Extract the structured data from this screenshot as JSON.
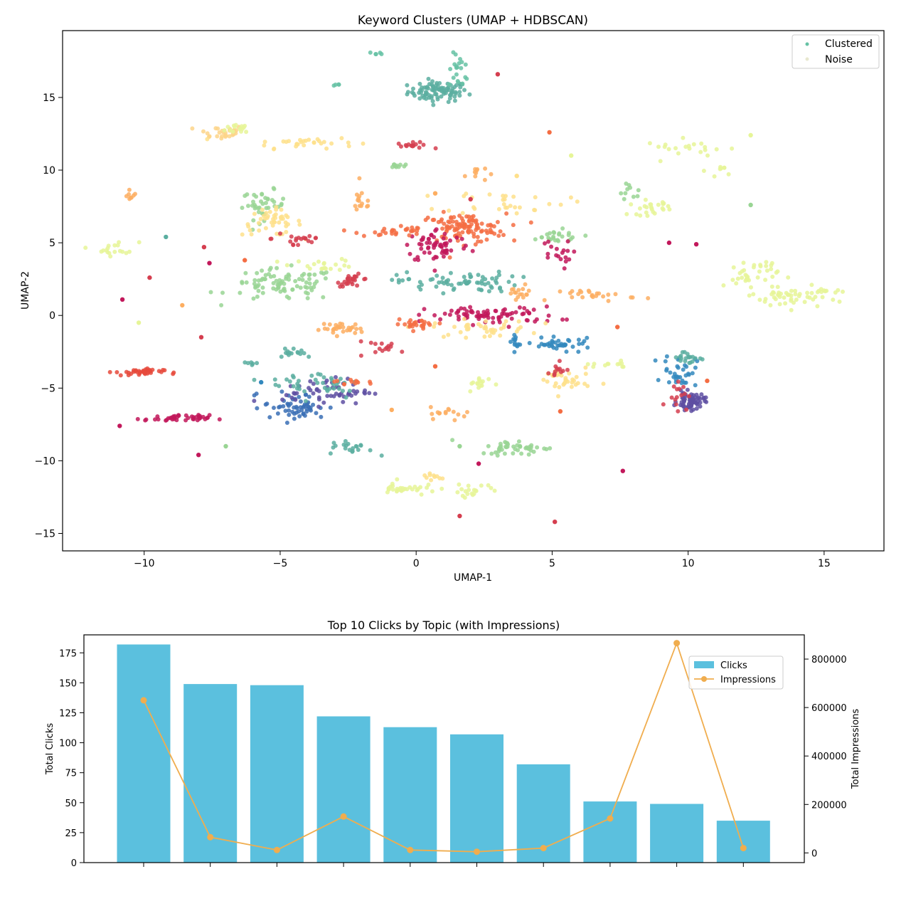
{
  "chart_data": [
    {
      "type": "scatter",
      "title": "Keyword Clusters (UMAP + HDBSCAN)",
      "xlabel": "UMAP-1",
      "ylabel": "UMAP-2",
      "xlim": [
        -13,
        17.2
      ],
      "ylim": [
        -16.2,
        19.6
      ],
      "xticks": [
        -10,
        -5,
        0,
        5,
        10,
        15
      ],
      "yticks": [
        -15,
        -10,
        -5,
        0,
        5,
        10,
        15
      ],
      "xtick_labels": [
        "−10",
        "−5",
        "0",
        "5",
        "10",
        "15"
      ],
      "ytick_labels": [
        "−15",
        "−10",
        "−5",
        "0",
        "5",
        "10",
        "15"
      ],
      "legend": {
        "placement": "top-right",
        "entries": [
          {
            "label": "Clustered",
            "color": "#66c2a5"
          },
          {
            "label": "Noise",
            "color": "#e8e8d0"
          }
        ]
      },
      "clusters": [
        {
          "cx": 0.8,
          "cy": 15.4,
          "sx": 0.55,
          "sy": 0.35,
          "n": 90,
          "color": "#5aaea0"
        },
        {
          "cx": 1.6,
          "cy": 16.8,
          "sx": 0.2,
          "sy": 0.6,
          "n": 20,
          "color": "#66c2a5"
        },
        {
          "cx": -1.5,
          "cy": 18.0,
          "sx": 0.12,
          "sy": 0.08,
          "n": 5,
          "color": "#66c2a5"
        },
        {
          "cx": -2.9,
          "cy": 15.9,
          "sx": 0.08,
          "sy": 0.06,
          "n": 4,
          "color": "#66c2a5"
        },
        {
          "cx": -7.2,
          "cy": 12.6,
          "sx": 0.45,
          "sy": 0.25,
          "n": 30,
          "color": "#fdd58a"
        },
        {
          "cx": -6.4,
          "cy": 12.9,
          "sx": 0.3,
          "sy": 0.2,
          "n": 15,
          "color": "#e6f598"
        },
        {
          "cx": -4.2,
          "cy": 11.9,
          "sx": 1.0,
          "sy": 0.2,
          "n": 30,
          "color": "#fee08b"
        },
        {
          "cx": -0.1,
          "cy": 11.7,
          "sx": 0.3,
          "sy": 0.1,
          "n": 15,
          "color": "#d53e4f"
        },
        {
          "cx": -0.8,
          "cy": 10.3,
          "sx": 0.2,
          "sy": 0.1,
          "n": 10,
          "color": "#99d594"
        },
        {
          "cx": 2.2,
          "cy": 9.8,
          "sx": 0.2,
          "sy": 0.3,
          "n": 10,
          "color": "#fdae61"
        },
        {
          "cx": -11.0,
          "cy": 4.6,
          "sx": 0.4,
          "sy": 0.25,
          "n": 18,
          "color": "#e6f598"
        },
        {
          "cx": -10.5,
          "cy": 8.3,
          "sx": 0.1,
          "sy": 0.2,
          "n": 8,
          "color": "#fdae61"
        },
        {
          "cx": -5.6,
          "cy": 7.6,
          "sx": 0.4,
          "sy": 0.5,
          "n": 40,
          "color": "#99d594"
        },
        {
          "cx": -5.3,
          "cy": 6.4,
          "sx": 0.55,
          "sy": 0.45,
          "n": 45,
          "color": "#fee08b"
        },
        {
          "cx": -4.3,
          "cy": 5.3,
          "sx": 0.5,
          "sy": 0.4,
          "n": 20,
          "color": "#d53e4f"
        },
        {
          "cx": -2.0,
          "cy": 7.8,
          "sx": 0.2,
          "sy": 0.5,
          "n": 15,
          "color": "#fdae61"
        },
        {
          "cx": -4.9,
          "cy": 2.1,
          "sx": 1.0,
          "sy": 0.55,
          "n": 90,
          "color": "#99d594"
        },
        {
          "cx": -3.4,
          "cy": 3.5,
          "sx": 0.6,
          "sy": 0.2,
          "n": 20,
          "color": "#e6f598"
        },
        {
          "cx": -2.3,
          "cy": 2.4,
          "sx": 0.3,
          "sy": 0.2,
          "n": 25,
          "color": "#d53e4f"
        },
        {
          "cx": 1.7,
          "cy": 6.0,
          "sx": 0.8,
          "sy": 0.5,
          "n": 110,
          "color": "#f46d43"
        },
        {
          "cx": 0.8,
          "cy": 4.8,
          "sx": 0.6,
          "sy": 0.6,
          "n": 60,
          "color": "#c2185b"
        },
        {
          "cx": -0.9,
          "cy": 5.8,
          "sx": 0.6,
          "sy": 0.2,
          "n": 25,
          "color": "#f46d43"
        },
        {
          "cx": 3.3,
          "cy": 7.8,
          "sx": 1.1,
          "sy": 0.4,
          "n": 30,
          "color": "#fee08b"
        },
        {
          "cx": 5.0,
          "cy": 5.4,
          "sx": 0.6,
          "sy": 0.25,
          "n": 25,
          "color": "#99d594"
        },
        {
          "cx": 5.1,
          "cy": 4.2,
          "sx": 0.3,
          "sy": 0.5,
          "n": 18,
          "color": "#c2185b"
        },
        {
          "cx": 1.5,
          "cy": 2.3,
          "sx": 1.1,
          "sy": 0.35,
          "n": 70,
          "color": "#5aaea0"
        },
        {
          "cx": 3.8,
          "cy": 1.5,
          "sx": 0.25,
          "sy": 0.3,
          "n": 15,
          "color": "#fdae61"
        },
        {
          "cx": 2.8,
          "cy": 0.0,
          "sx": 1.2,
          "sy": 0.3,
          "n": 80,
          "color": "#c2185b"
        },
        {
          "cx": 2.4,
          "cy": -0.9,
          "sx": 0.9,
          "sy": 0.3,
          "n": 40,
          "color": "#fee08b"
        },
        {
          "cx": 3.6,
          "cy": -1.8,
          "sx": 0.1,
          "sy": 0.3,
          "n": 10,
          "color": "#3288bd"
        },
        {
          "cx": 0.1,
          "cy": -0.6,
          "sx": 0.45,
          "sy": 0.15,
          "n": 25,
          "color": "#f46d43"
        },
        {
          "cx": -2.7,
          "cy": -0.9,
          "sx": 0.4,
          "sy": 0.2,
          "n": 30,
          "color": "#fdae61"
        },
        {
          "cx": -1.2,
          "cy": -2.2,
          "sx": 0.6,
          "sy": 0.2,
          "n": 15,
          "color": "#d53e4f"
        },
        {
          "cx": 6.7,
          "cy": 1.4,
          "sx": 0.7,
          "sy": 0.2,
          "n": 25,
          "color": "#fdae61"
        },
        {
          "cx": 8.6,
          "cy": 7.4,
          "sx": 0.4,
          "sy": 0.25,
          "n": 25,
          "color": "#e6f598"
        },
        {
          "cx": 7.9,
          "cy": 8.5,
          "sx": 0.3,
          "sy": 0.3,
          "n": 10,
          "color": "#99d594"
        },
        {
          "cx": 10.0,
          "cy": 11.5,
          "sx": 0.8,
          "sy": 0.3,
          "n": 20,
          "color": "#e6f598"
        },
        {
          "cx": 11.3,
          "cy": 10.0,
          "sx": 0.3,
          "sy": 0.2,
          "n": 8,
          "color": "#e6f598"
        },
        {
          "cx": 12.3,
          "cy": 2.8,
          "sx": 0.5,
          "sy": 0.6,
          "n": 40,
          "color": "#e6f598"
        },
        {
          "cx": 13.8,
          "cy": 1.2,
          "sx": 0.65,
          "sy": 0.35,
          "n": 45,
          "color": "#e6f598"
        },
        {
          "cx": 15.1,
          "cy": 1.7,
          "sx": 0.35,
          "sy": 0.1,
          "n": 10,
          "color": "#e6f598"
        },
        {
          "cx": 5.3,
          "cy": -2.0,
          "sx": 0.6,
          "sy": 0.2,
          "n": 40,
          "color": "#3288bd"
        },
        {
          "cx": 7.1,
          "cy": -3.4,
          "sx": 0.5,
          "sy": 0.1,
          "n": 12,
          "color": "#e6f598"
        },
        {
          "cx": 5.4,
          "cy": -4.5,
          "sx": 0.5,
          "sy": 0.5,
          "n": 35,
          "color": "#fee08b"
        },
        {
          "cx": 5.2,
          "cy": -3.9,
          "sx": 0.25,
          "sy": 0.3,
          "n": 12,
          "color": "#d53e4f"
        },
        {
          "cx": 10.1,
          "cy": -5.9,
          "sx": 0.25,
          "sy": 0.3,
          "n": 70,
          "color": "#5e4fa2"
        },
        {
          "cx": 9.7,
          "cy": -3.8,
          "sx": 0.3,
          "sy": 0.55,
          "n": 35,
          "color": "#3288bd"
        },
        {
          "cx": 10.0,
          "cy": -2.9,
          "sx": 0.35,
          "sy": 0.25,
          "n": 20,
          "color": "#5aaea0"
        },
        {
          "cx": 9.6,
          "cy": -5.2,
          "sx": 0.2,
          "sy": 0.6,
          "n": 15,
          "color": "#d53e4f"
        },
        {
          "cx": -10.2,
          "cy": -3.9,
          "sx": 0.45,
          "sy": 0.12,
          "n": 40,
          "color": "#e64a3c"
        },
        {
          "cx": -8.8,
          "cy": -7.1,
          "sx": 0.6,
          "sy": 0.12,
          "n": 40,
          "color": "#c2185b"
        },
        {
          "cx": -4.4,
          "cy": -6.3,
          "sx": 0.6,
          "sy": 0.5,
          "n": 60,
          "color": "#3a6fb5"
        },
        {
          "cx": -3.3,
          "cy": -5.2,
          "sx": 0.8,
          "sy": 0.45,
          "n": 55,
          "color": "#5e4fa2"
        },
        {
          "cx": -3.6,
          "cy": -4.7,
          "sx": 0.9,
          "sy": 0.5,
          "n": 40,
          "color": "#5aaea0"
        },
        {
          "cx": -4.5,
          "cy": -2.5,
          "sx": 0.4,
          "sy": 0.2,
          "n": 15,
          "color": "#5aaea0"
        },
        {
          "cx": -6.2,
          "cy": -3.3,
          "sx": 0.2,
          "sy": 0.1,
          "n": 6,
          "color": "#5aaea0"
        },
        {
          "cx": -2.2,
          "cy": -4.6,
          "sx": 0.4,
          "sy": 0.1,
          "n": 12,
          "color": "#f46d43"
        },
        {
          "cx": 1.3,
          "cy": -6.7,
          "sx": 0.4,
          "sy": 0.2,
          "n": 15,
          "color": "#fdae61"
        },
        {
          "cx": 2.4,
          "cy": -4.7,
          "sx": 0.25,
          "sy": 0.25,
          "n": 15,
          "color": "#e6f598"
        },
        {
          "cx": -2.4,
          "cy": -9.1,
          "sx": 0.4,
          "sy": 0.25,
          "n": 20,
          "color": "#5aaea0"
        },
        {
          "cx": 3.7,
          "cy": -9.1,
          "sx": 0.7,
          "sy": 0.25,
          "n": 45,
          "color": "#99d594"
        },
        {
          "cx": -0.5,
          "cy": -11.9,
          "sx": 0.4,
          "sy": 0.25,
          "n": 30,
          "color": "#e6f598"
        },
        {
          "cx": 2.1,
          "cy": -12.0,
          "sx": 0.5,
          "sy": 0.2,
          "n": 20,
          "color": "#e6f598"
        },
        {
          "cx": 0.5,
          "cy": -11.1,
          "sx": 0.3,
          "sy": 0.15,
          "n": 10,
          "color": "#fee08b"
        }
      ],
      "singles": [
        {
          "x": 3.0,
          "y": 16.6,
          "color": "#d53e4f"
        },
        {
          "x": 4.9,
          "y": 12.6,
          "color": "#f46d43"
        },
        {
          "x": -9.2,
          "y": 5.4,
          "color": "#5aaea0"
        },
        {
          "x": -7.8,
          "y": 4.7,
          "color": "#d53e4f"
        },
        {
          "x": -7.6,
          "y": 3.6,
          "color": "#c2185b"
        },
        {
          "x": -6.3,
          "y": 3.8,
          "color": "#f46d43"
        },
        {
          "x": -9.8,
          "y": 2.6,
          "color": "#d53e4f"
        },
        {
          "x": -10.8,
          "y": 1.1,
          "color": "#c2185b"
        },
        {
          "x": -8.6,
          "y": 0.7,
          "color": "#fdae61"
        },
        {
          "x": -10.2,
          "y": -0.5,
          "color": "#e6f598"
        },
        {
          "x": -7.9,
          "y": -1.5,
          "color": "#d53e4f"
        },
        {
          "x": -10.9,
          "y": -7.6,
          "color": "#c2185b"
        },
        {
          "x": -8.0,
          "y": -9.6,
          "color": "#c2185b"
        },
        {
          "x": -7.0,
          "y": -9.0,
          "color": "#99d594"
        },
        {
          "x": 10.3,
          "y": 4.9,
          "color": "#c2185b"
        },
        {
          "x": 9.3,
          "y": 5.0,
          "color": "#c2185b"
        },
        {
          "x": 12.3,
          "y": 7.6,
          "color": "#99d594"
        },
        {
          "x": 12.3,
          "y": 12.4,
          "color": "#e6f598"
        },
        {
          "x": 7.4,
          "y": -0.8,
          "color": "#f46d43"
        },
        {
          "x": 7.6,
          "y": -10.7,
          "color": "#c2185b"
        },
        {
          "x": 5.1,
          "y": -14.2,
          "color": "#d53e4f"
        },
        {
          "x": 1.6,
          "y": -13.8,
          "color": "#d53e4f"
        },
        {
          "x": 5.3,
          "y": -6.6,
          "color": "#f46d43"
        },
        {
          "x": 10.7,
          "y": -4.5,
          "color": "#f46d43"
        },
        {
          "x": 2.3,
          "y": -10.2,
          "color": "#c2185b"
        },
        {
          "x": 1.6,
          "y": -9.0,
          "color": "#99d594"
        },
        {
          "x": -0.9,
          "y": -6.5,
          "color": "#fdae61"
        },
        {
          "x": 5.7,
          "y": 11.0,
          "color": "#e6f598"
        },
        {
          "x": 3.7,
          "y": 9.6,
          "color": "#fee08b"
        },
        {
          "x": 0.7,
          "y": 8.4,
          "color": "#fdae61"
        },
        {
          "x": -5.7,
          "y": -4.6,
          "color": "#3288bd"
        },
        {
          "x": 0.7,
          "y": -3.5,
          "color": "#f46d43"
        },
        {
          "x": 2.0,
          "y": 8.0,
          "color": "#d53e4f"
        }
      ]
    },
    {
      "type": "bar",
      "title": "Top 10 Clicks by Topic (with Impressions)",
      "xlabel": "",
      "ylabel": "Total Clicks",
      "y2label": "Total Impressions",
      "ylim": [
        0,
        190
      ],
      "y2lim": [
        -40000,
        900000
      ],
      "yticks": [
        0,
        25,
        50,
        75,
        100,
        125,
        150,
        175
      ],
      "y2ticks": [
        0,
        200000,
        400000,
        600000,
        800000
      ],
      "categories": [
        "",
        "",
        "",
        "",
        "",
        "",
        "",
        "",
        "",
        ""
      ],
      "series": [
        {
          "name": "Clicks",
          "type": "bar",
          "color": "#5bc0de",
          "values": [
            182,
            149,
            148,
            122,
            113,
            107,
            82,
            51,
            49,
            35
          ]
        },
        {
          "name": "Impressions",
          "type": "line",
          "axis": "right",
          "color": "#f0ad4e",
          "values": [
            630000,
            65000,
            12000,
            150000,
            12000,
            5000,
            20000,
            142000,
            866000,
            20000
          ]
        }
      ],
      "legend": {
        "placement": "top-right"
      }
    }
  ]
}
